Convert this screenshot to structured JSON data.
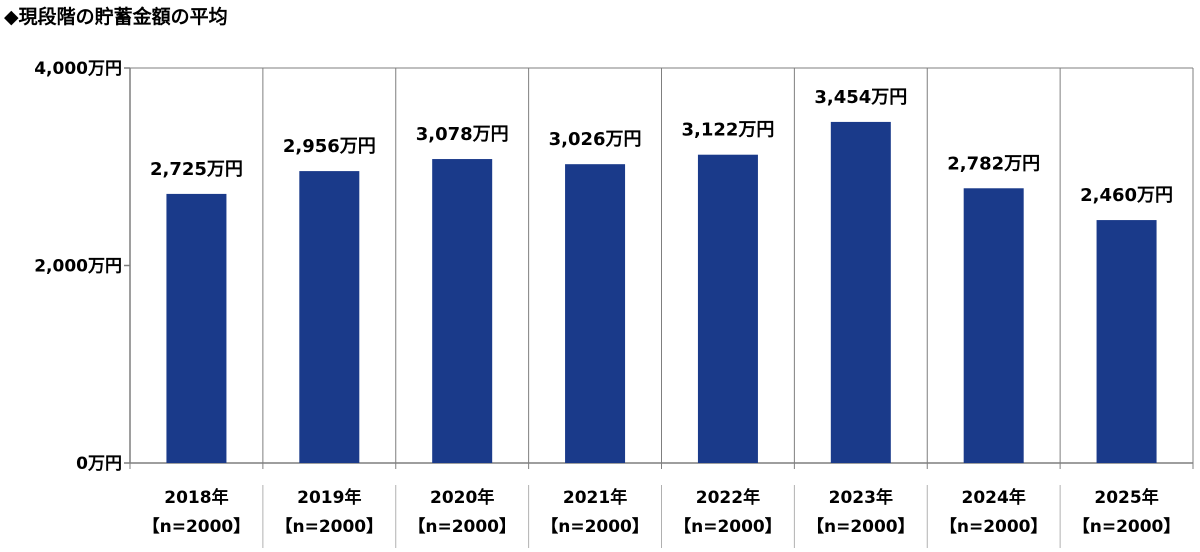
{
  "chart_data": {
    "type": "bar",
    "title": "◆現段階の貯蓄金額の平均",
    "categories": [
      "2018年",
      "2019年",
      "2020年",
      "2021年",
      "2022年",
      "2023年",
      "2024年",
      "2025年"
    ],
    "category_sublabels": [
      "【n=2000】",
      "【n=2000】",
      "【n=2000】",
      "【n=2000】",
      "【n=2000】",
      "【n=2000】",
      "【n=2000】",
      "【n=2000】"
    ],
    "values": [
      2725,
      2956,
      3078,
      3026,
      3122,
      3454,
      2782,
      2460
    ],
    "data_labels": [
      "2,725万円",
      "2,956万円",
      "3,078万円",
      "3,026万円",
      "3,122万円",
      "3,454万円",
      "2,782万円",
      "2,460万円"
    ],
    "yticks": [
      {
        "value": 0,
        "label": "0万円"
      },
      {
        "value": 2000,
        "label": "2,000万円"
      },
      {
        "value": 4000,
        "label": "4,000万円"
      }
    ],
    "ylim": [
      0,
      4000
    ],
    "xlabel": "",
    "ylabel": "",
    "grid": "vertical separators",
    "legend": "none",
    "bar_color": "#1a3a8a",
    "axis_color": "#7f7f7f"
  }
}
